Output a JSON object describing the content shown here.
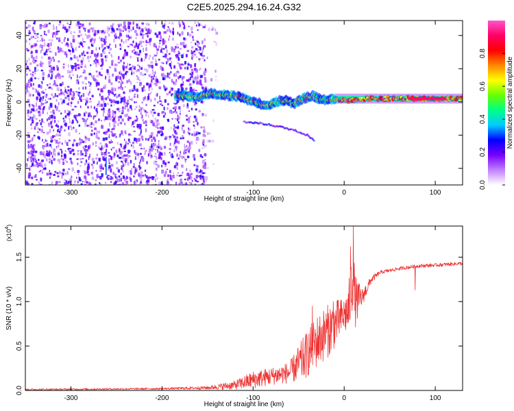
{
  "title": "C2E5.2025.294.16.24.G32",
  "chart_data": [
    {
      "type": "heatmap",
      "title": "C2E5.2025.294.16.24.G32",
      "xlabel": "Height of straight line (km)",
      "ylabel": "Frequency (Hz)",
      "xlim": [
        -350,
        130
      ],
      "ylim": [
        -50,
        49
      ],
      "xticks": [
        -300,
        -200,
        -100,
        0,
        100
      ],
      "xtick_labels": [
        "-300",
        "-200",
        "-100",
        "0",
        "100"
      ],
      "yticks": [
        -40,
        -20,
        0,
        20,
        40
      ],
      "ytick_labels": [
        "-40",
        "-20",
        "0",
        "20",
        "40"
      ],
      "colorbar": {
        "label": "Normalized spectral amplitude",
        "range": [
          0,
          1
        ],
        "ticks": [
          0.0,
          0.2,
          0.4,
          0.6,
          0.8
        ],
        "tick_labels": [
          "0.0",
          "0.2",
          "0.4",
          "0.6",
          "0.8"
        ],
        "colors": [
          "#ffffff",
          "#c080ff",
          "#7700ff",
          "#0000ff",
          "#00ccff",
          "#00ff88",
          "#66ff00",
          "#ffff00",
          "#ff8800",
          "#ff0000",
          "#ff0066",
          "#ff55cc"
        ]
      },
      "regions": [
        {
          "name": "broadband noise",
          "x_range": [
            -350,
            -153
          ],
          "y_range": [
            -50,
            49
          ],
          "amplitude": 0.15
        },
        {
          "name": "ridge",
          "points": [
            [
              -180,
              4
            ],
            [
              -160,
              3
            ],
            [
              -145,
              5
            ],
            [
              -130,
              4
            ],
            [
              -115,
              3
            ],
            [
              -100,
              0
            ],
            [
              -85,
              -2
            ],
            [
              -75,
              0
            ],
            [
              -65,
              1
            ],
            [
              -55,
              -1
            ],
            [
              -45,
              2
            ],
            [
              -35,
              4
            ],
            [
              -25,
              1
            ],
            [
              -10,
              2
            ],
            [
              0,
              1
            ],
            [
              10,
              1
            ],
            [
              30,
              2
            ],
            [
              60,
              2
            ],
            [
              100,
              2
            ],
            [
              130,
              2
            ]
          ],
          "amplitude": 0.75
        },
        {
          "name": "branch",
          "points": [
            [
              -110,
              -12
            ],
            [
              -90,
              -13
            ],
            [
              -70,
              -15
            ],
            [
              -55,
              -17
            ],
            [
              -40,
              -20
            ],
            [
              -33,
              -23
            ]
          ],
          "amplitude": 0.3
        }
      ]
    },
    {
      "type": "line",
      "xlabel": "Height of straight line (km)",
      "ylabel": "SNR (10 * v/v)",
      "scale_label": "(x10",
      "scale_exponent": "4",
      "scale_close": ")",
      "xlim": [
        -350,
        130
      ],
      "ylim": [
        0,
        1.85
      ],
      "xticks": [
        -300,
        -200,
        -100,
        0,
        100
      ],
      "xtick_labels": [
        "-300",
        "-200",
        "-100",
        "0",
        "100"
      ],
      "yticks": [
        0,
        0.5,
        1.0,
        1.5
      ],
      "ytick_labels": [
        "0.0",
        "0.5",
        "1.0",
        "1.5"
      ],
      "series": [
        {
          "name": "SNR",
          "color": "#ee3333",
          "envelope": {
            "x": [
              -350,
              -200,
              -150,
              -120,
              -100,
              -80,
              -60,
              -45,
              -30,
              -15,
              0,
              5,
              8,
              10,
              12,
              20,
              30,
              40,
              60,
              80,
              100,
              130
            ],
            "y": [
              0.01,
              0.02,
              0.03,
              0.06,
              0.12,
              0.16,
              0.2,
              0.35,
              0.55,
              0.7,
              0.85,
              0.9,
              1.2,
              1.3,
              1.0,
              1.05,
              1.25,
              1.33,
              1.37,
              1.4,
              1.41,
              1.43
            ],
            "noise": [
              0.01,
              0.01,
              0.02,
              0.05,
              0.1,
              0.1,
              0.12,
              0.25,
              0.3,
              0.3,
              0.2,
              0.3,
              0.4,
              0.35,
              0.3,
              0.1,
              0.04,
              0.02,
              0.02,
              0.02,
              0.02,
              0.02
            ]
          },
          "peaks": [
            [
              10,
              1.85
            ],
            [
              7,
              1.62
            ],
            [
              78,
              1.13
            ],
            [
              -35,
              0.95
            ],
            [
              -12,
              1.0
            ]
          ]
        }
      ]
    }
  ]
}
